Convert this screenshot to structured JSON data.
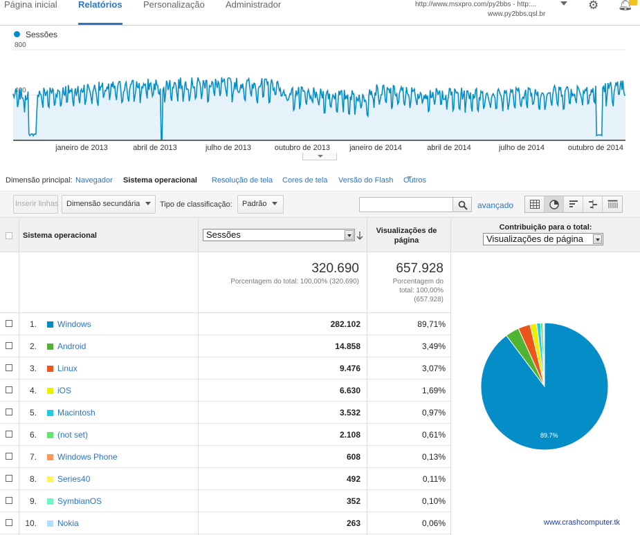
{
  "nav": {
    "tabs": [
      {
        "label": "Página inicial",
        "active": false
      },
      {
        "label": "Relatórios",
        "active": true
      },
      {
        "label": "Personalização",
        "active": false
      },
      {
        "label": "Administrador",
        "active": false
      }
    ],
    "account_line1": "http://www.msxpro.com/py2bbs - http:...",
    "account_line2": "www.py2bbs.qsl.br",
    "icons": [
      "gear-icon",
      "bell-icon"
    ]
  },
  "chart": {
    "legend": "Sessões",
    "color": "#058dc7",
    "fill_color": "#e6f2fa",
    "y_ticks": [
      "800",
      "400"
    ],
    "x_labels": [
      "janeiro de 2013",
      "abril de 2013",
      "julho de 2013",
      "outubro de 2013",
      "janeiro de 2014",
      "abril de 2014",
      "julho de 2014",
      "outubro de 2014"
    ]
  },
  "chart_data": {
    "type": "area",
    "series": [
      {
        "name": "Sessões"
      }
    ],
    "ylim": [
      0,
      800
    ],
    "y_ticks": [
      400,
      800
    ],
    "x_range": [
      "dezembro de 2012",
      "novembro de 2014"
    ],
    "grid": true
  },
  "dimension": {
    "label": "Dimensão principal:",
    "items": [
      {
        "label": "Navegador",
        "active": false
      },
      {
        "label": "Sistema operacional",
        "active": true
      },
      {
        "label": "Resolução de tela",
        "active": false
      },
      {
        "label": "Cores de tela",
        "active": false
      },
      {
        "label": "Versão do Flash",
        "active": false
      },
      {
        "label": "Outros",
        "active": false
      }
    ]
  },
  "toolbar": {
    "insert_rows": "Inserir linhas",
    "secondary_dimension": "Dimensão secundária",
    "sort_label": "Tipo de classificação:",
    "sort_value": "Padrão",
    "search_placeholder": "",
    "advanced": "avançado"
  },
  "table": {
    "col_dimension": "Sistema operacional",
    "col_sessions_select": "Sessões",
    "col_pageviews": "Visualizações de página",
    "col_contribution": "Contribuição para o total:",
    "col_contribution_select": "Visualizações de página",
    "totals": {
      "sessions": "320.690",
      "sessions_sub": "Porcentagem do total: 100,00% (320.690)",
      "pageviews": "657.928",
      "pageviews_sub_1": "Porcentagem do",
      "pageviews_sub_2": "total: 100,00%",
      "pageviews_sub_3": "(657.928)"
    },
    "rows": [
      {
        "num": "1.",
        "name": "Windows",
        "color": "#058dc7",
        "sessions": "282.102",
        "pageviews": "89,71%"
      },
      {
        "num": "2.",
        "name": "Android",
        "color": "#50b432",
        "sessions": "14.858",
        "pageviews": "3,49%"
      },
      {
        "num": "3.",
        "name": "Linux",
        "color": "#ed561b",
        "sessions": "9.476",
        "pageviews": "3,07%"
      },
      {
        "num": "4.",
        "name": "iOS",
        "color": "#edef00",
        "sessions": "6.630",
        "pageviews": "1,69%"
      },
      {
        "num": "5.",
        "name": "Macintosh",
        "color": "#24cbe5",
        "sessions": "3.532",
        "pageviews": "0,97%"
      },
      {
        "num": "6.",
        "name": "(not set)",
        "color": "#64e572",
        "sessions": "2.108",
        "pageviews": "0,61%"
      },
      {
        "num": "7.",
        "name": "Windows Phone",
        "color": "#ff9655",
        "sessions": "608",
        "pageviews": "0,13%"
      },
      {
        "num": "8.",
        "name": "Series40",
        "color": "#fff263",
        "sessions": "492",
        "pageviews": "0,11%"
      },
      {
        "num": "9.",
        "name": "SymbianOS",
        "color": "#6af9c4",
        "sessions": "352",
        "pageviews": "0,10%"
      },
      {
        "num": "10.",
        "name": "Nokia",
        "color": "#b2deff",
        "sessions": "263",
        "pageviews": "0,06%"
      }
    ]
  },
  "pie": {
    "label": "89.7%",
    "values": [
      89.71,
      3.49,
      3.07,
      1.69,
      0.97,
      0.61,
      0.13,
      0.11,
      0.1,
      0.06
    ]
  },
  "footer": {
    "link": "www.crashcomputer.tk"
  }
}
